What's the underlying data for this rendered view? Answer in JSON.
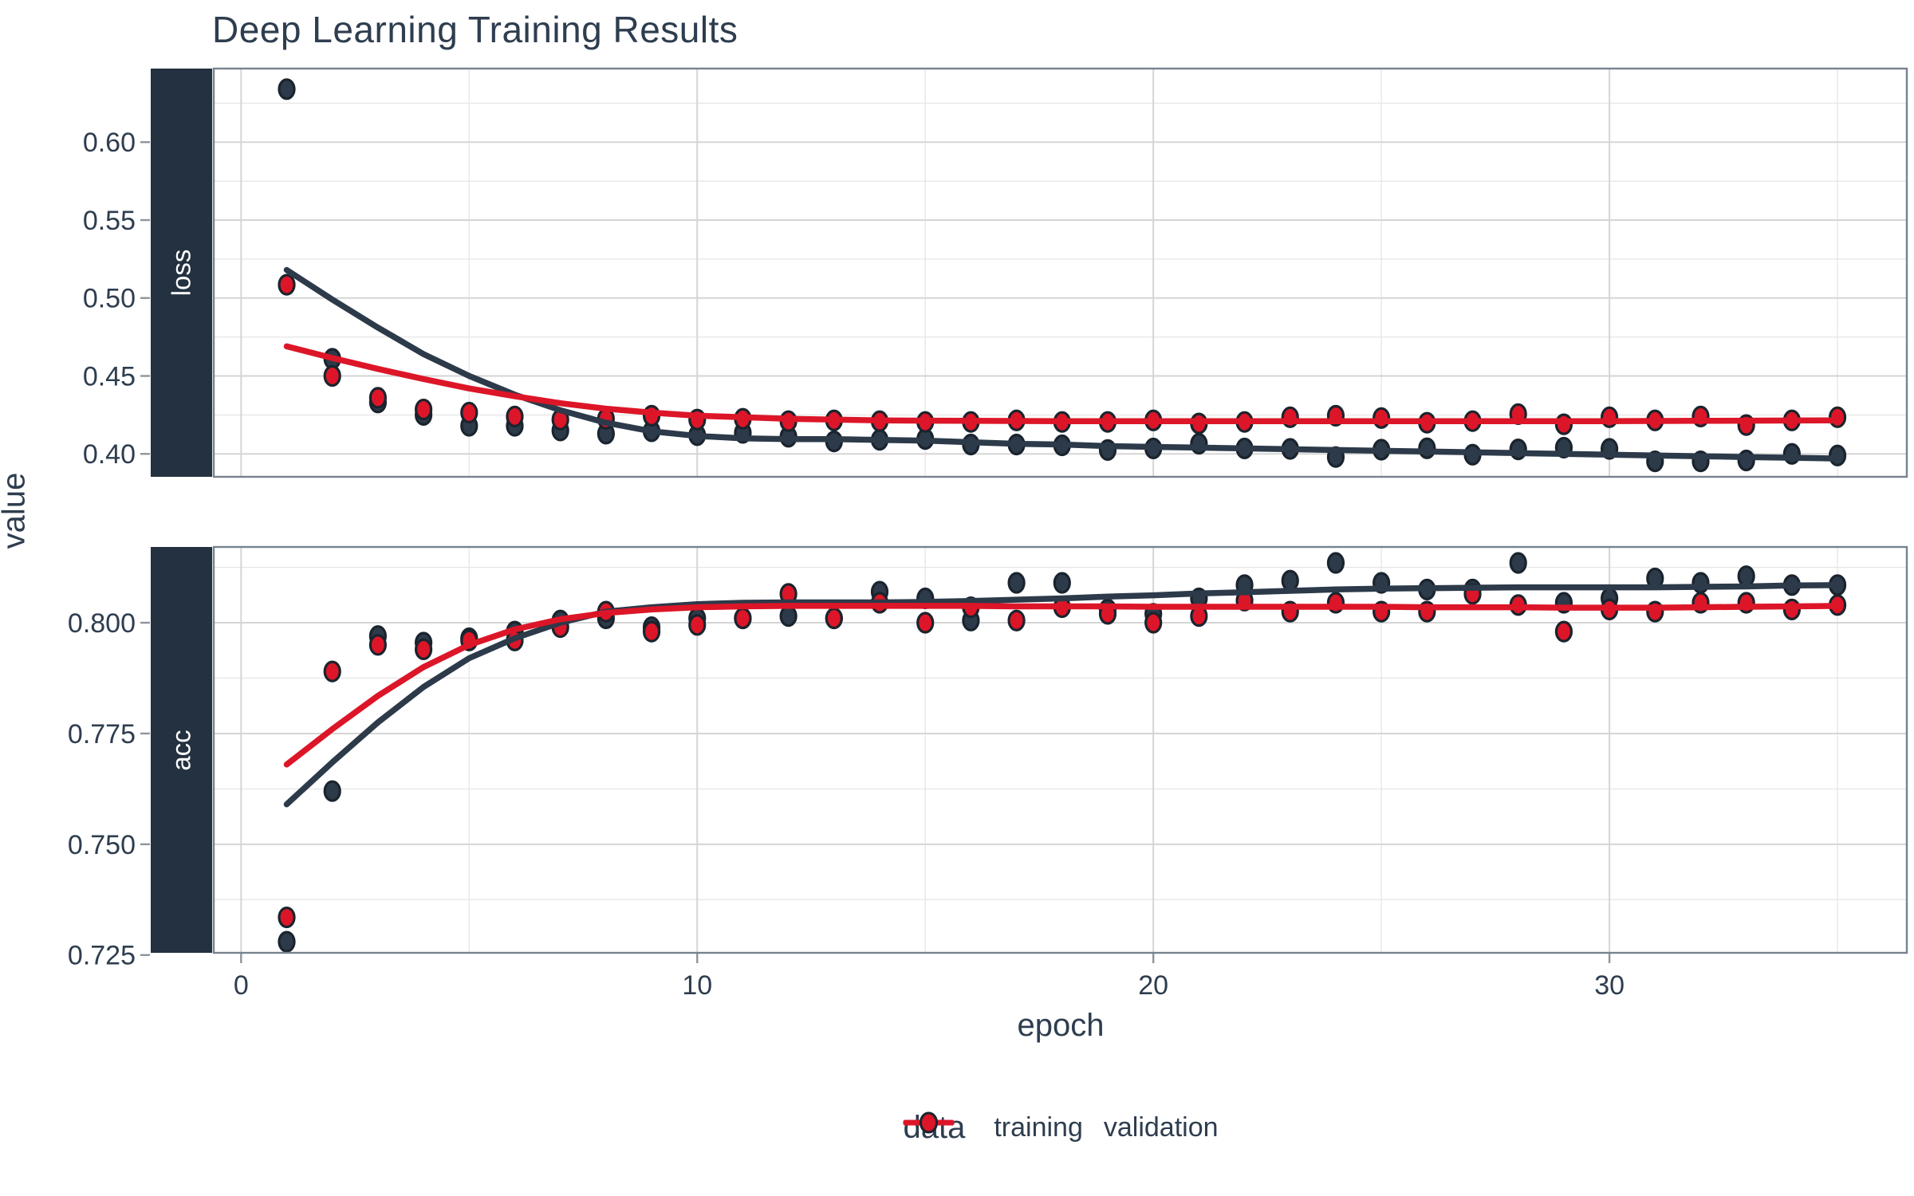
{
  "title": "Deep Learning Training Results",
  "axes": {
    "y_label": "value",
    "x_label": "epoch",
    "x_ticks": {
      "values": [
        0,
        10,
        20,
        30
      ],
      "labels": [
        "0",
        "10",
        "20",
        "30"
      ],
      "minor": [
        5,
        15,
        25,
        35
      ]
    }
  },
  "legend": {
    "title": "data",
    "items": [
      {
        "label": "training",
        "color": "#2C3A4A"
      },
      {
        "label": "validation",
        "color": "#DC1628"
      }
    ]
  },
  "colors": {
    "training": "#2C3A4A",
    "validation": "#DC1628",
    "point_stroke": "#1A242E",
    "strip_bg": "#233140",
    "strip_text": "#FFFFFF",
    "panel_border": "#76828F",
    "grid_major": "#D5D5D5",
    "grid_minor": "#E7E7E7",
    "tick_mark": "#8C959D",
    "text": "#2E3D4F"
  },
  "chart_data": [
    {
      "type": "scatter",
      "facet": "loss",
      "xlabel": "epoch",
      "ylabel": "value",
      "grid": "major+minor",
      "legend_position": "bottom",
      "xlim": [
        -0.6,
        36.52
      ],
      "ylim": [
        0.3853,
        0.6472
      ],
      "y_ticks": {
        "values": [
          0.4,
          0.45,
          0.5,
          0.55,
          0.6
        ],
        "labels": [
          "0.40",
          "0.45",
          "0.50",
          "0.55",
          "0.60"
        ],
        "minor": [
          0.425,
          0.475,
          0.525,
          0.575,
          0.625
        ]
      },
      "x": [
        1,
        2,
        3,
        4,
        5,
        6,
        7,
        8,
        9,
        10,
        11,
        12,
        13,
        14,
        15,
        16,
        17,
        18,
        19,
        20,
        21,
        22,
        23,
        24,
        25,
        26,
        27,
        28,
        29,
        30,
        31,
        32,
        33,
        34,
        35
      ],
      "series": [
        {
          "name": "training",
          "points": [
            0.634,
            0.461,
            0.433,
            0.425,
            0.418,
            0.418,
            0.415,
            0.413,
            0.4145,
            0.412,
            0.4135,
            0.411,
            0.408,
            0.409,
            0.4095,
            0.406,
            0.406,
            0.4055,
            0.4025,
            0.4035,
            0.4065,
            0.4035,
            0.4032,
            0.398,
            0.4027,
            0.4036,
            0.3995,
            0.4029,
            0.404,
            0.4032,
            0.3952,
            0.3952,
            0.3958,
            0.4,
            0.399
          ],
          "smooth_line": [
            0.518,
            0.499,
            0.481,
            0.464,
            0.45,
            0.438,
            0.428,
            0.42,
            0.4145,
            0.4115,
            0.41,
            0.4095,
            0.4095,
            0.409,
            0.4085,
            0.4075,
            0.4065,
            0.406,
            0.405,
            0.4045,
            0.404,
            0.4035,
            0.403,
            0.4025,
            0.402,
            0.4015,
            0.401,
            0.4005,
            0.4,
            0.3995,
            0.399,
            0.3985,
            0.398,
            0.3975,
            0.397
          ]
        },
        {
          "name": "validation",
          "points": [
            0.5085,
            0.45,
            0.436,
            0.4285,
            0.4265,
            0.424,
            0.422,
            0.4225,
            0.4245,
            0.422,
            0.4225,
            0.421,
            0.4215,
            0.421,
            0.4205,
            0.4205,
            0.4215,
            0.4205,
            0.4205,
            0.4215,
            0.4195,
            0.4205,
            0.4235,
            0.4245,
            0.423,
            0.42,
            0.421,
            0.4255,
            0.419,
            0.4235,
            0.4215,
            0.424,
            0.4185,
            0.4215,
            0.4235
          ],
          "smooth_line": [
            0.469,
            0.4615,
            0.4545,
            0.448,
            0.442,
            0.437,
            0.4325,
            0.429,
            0.4265,
            0.4245,
            0.4235,
            0.4225,
            0.422,
            0.4215,
            0.4213,
            0.4212,
            0.4211,
            0.421,
            0.421,
            0.421,
            0.421,
            0.421,
            0.421,
            0.421,
            0.421,
            0.421,
            0.421,
            0.421,
            0.421,
            0.421,
            0.4211,
            0.4212,
            0.4213,
            0.4214,
            0.4215
          ]
        }
      ]
    },
    {
      "type": "scatter",
      "facet": "acc",
      "xlabel": "epoch",
      "ylabel": "value",
      "grid": "major+minor",
      "legend_position": "bottom",
      "xlim": [
        -0.6,
        36.52
      ],
      "ylim": [
        0.7255,
        0.8171
      ],
      "y_ticks": {
        "values": [
          0.725,
          0.75,
          0.775,
          0.8
        ],
        "labels": [
          "0.725",
          "0.750",
          "0.775",
          "0.800"
        ],
        "minor": [
          0.7375,
          0.7625,
          0.7875,
          0.8125
        ]
      },
      "x": [
        1,
        2,
        3,
        4,
        5,
        6,
        7,
        8,
        9,
        10,
        11,
        12,
        13,
        14,
        15,
        16,
        17,
        18,
        19,
        20,
        21,
        22,
        23,
        24,
        25,
        26,
        27,
        28,
        29,
        30,
        31,
        32,
        33,
        34,
        35
      ],
      "series": [
        {
          "name": "training",
          "points": [
            0.728,
            0.762,
            0.797,
            0.7955,
            0.7965,
            0.798,
            0.8005,
            0.801,
            0.799,
            0.801,
            0.801,
            0.8015,
            0.801,
            0.807,
            0.8055,
            0.8005,
            0.809,
            0.809,
            0.803,
            0.802,
            0.8055,
            0.8085,
            0.8095,
            0.8135,
            0.809,
            0.8075,
            0.8075,
            0.8135,
            0.8045,
            0.8055,
            0.81,
            0.809,
            0.8105,
            0.8085,
            0.8085
          ],
          "smooth_line": [
            0.759,
            0.7685,
            0.7775,
            0.7855,
            0.792,
            0.7965,
            0.8,
            0.8025,
            0.8035,
            0.8042,
            0.8045,
            0.8046,
            0.8046,
            0.8046,
            0.8047,
            0.8049,
            0.8052,
            0.8055,
            0.8059,
            0.8062,
            0.8066,
            0.8069,
            0.8072,
            0.8075,
            0.8077,
            0.8078,
            0.8079,
            0.808,
            0.808,
            0.808,
            0.808,
            0.8081,
            0.8082,
            0.8084,
            0.8085
          ]
        },
        {
          "name": "validation",
          "points": [
            0.7335,
            0.789,
            0.795,
            0.794,
            0.796,
            0.796,
            0.799,
            0.8025,
            0.798,
            0.7995,
            0.801,
            0.8065,
            0.801,
            0.8045,
            0.8,
            0.8035,
            0.8005,
            0.8035,
            0.802,
            0.8,
            0.8015,
            0.805,
            0.8025,
            0.8045,
            0.8025,
            0.8025,
            0.8065,
            0.804,
            0.798,
            0.803,
            0.8025,
            0.8045,
            0.8045,
            0.803,
            0.804
          ],
          "smooth_line": [
            0.768,
            0.776,
            0.7835,
            0.79,
            0.795,
            0.7985,
            0.8008,
            0.8022,
            0.803,
            0.8035,
            0.8037,
            0.8038,
            0.8038,
            0.8038,
            0.8038,
            0.8038,
            0.8037,
            0.8037,
            0.8037,
            0.8036,
            0.8036,
            0.8036,
            0.8036,
            0.8036,
            0.8036,
            0.8035,
            0.8035,
            0.8035,
            0.8034,
            0.8034,
            0.8034,
            0.8035,
            0.8036,
            0.8037,
            0.8038
          ]
        }
      ]
    }
  ]
}
